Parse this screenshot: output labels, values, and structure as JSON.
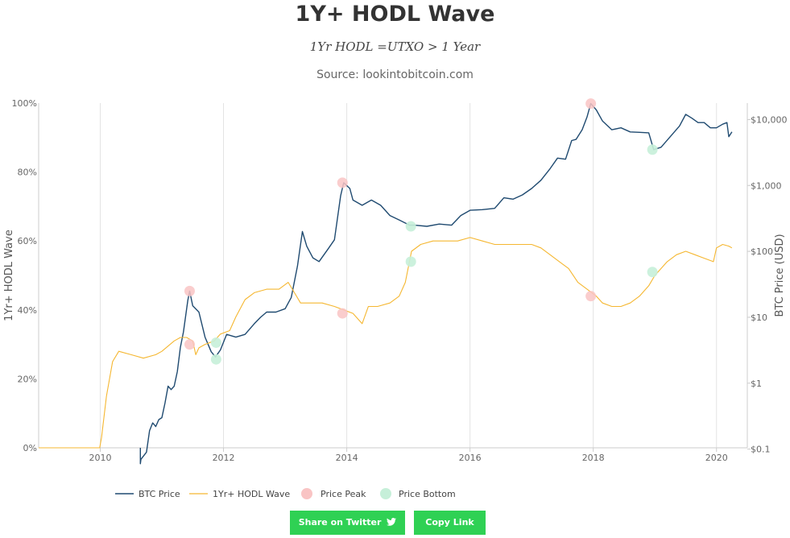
{
  "title": "1Y+ HODL Wave",
  "subtitle": "1Yr HODL =UTXO > 1 Year",
  "source": "Source: lookintobitcoin.com",
  "buttons": {
    "twitter_label": "Share on Twitter",
    "copy_label": "Copy Link"
  },
  "colors": {
    "btc_price": "#1f4a70",
    "hodl_wave": "#f5b731",
    "price_peak": "#f9c4c4",
    "price_bottom": "#c6efd9",
    "button": "#2fd154"
  },
  "chart_data": {
    "type": "line",
    "title": "1Y+ HODL Wave",
    "y_left_label": "1Yr+ HODL Wave",
    "y_right_label": "BTC Price (USD)",
    "y_left_ticks": [
      "0%",
      "20%",
      "40%",
      "60%",
      "80%",
      "100%"
    ],
    "y_right_ticks": [
      "$0.1",
      "$1",
      "$10",
      "$100",
      "$1,000",
      "$10,000"
    ],
    "x_ticks": [
      "2010",
      "2012",
      "2014",
      "2016",
      "2018",
      "2020"
    ],
    "x_range": [
      2009.0,
      2020.5
    ],
    "y_left_range": [
      0,
      100
    ],
    "y_right_range_log": [
      -0.98,
      4.25
    ],
    "right_axis_scale": "log",
    "grid": "vertical lines at x ticks",
    "legend_position": "bottom-center",
    "legend": [
      "BTC Price",
      "1Yr+ HODL Wave",
      "Price Peak",
      "Price Bottom"
    ],
    "series": [
      {
        "name": "BTC Price",
        "axis": "right",
        "x": [
          2010.65,
          2010.66,
          2010.75,
          2010.8,
          2010.85,
          2010.9,
          2010.95,
          2011.0,
          2011.05,
          2011.1,
          2011.15,
          2011.2,
          2011.25,
          2011.3,
          2011.35,
          2011.42,
          2011.45,
          2011.5,
          2011.6,
          2011.7,
          2011.8,
          2011.87,
          2011.95,
          2012.05,
          2012.2,
          2012.35,
          2012.5,
          2012.6,
          2012.7,
          2012.85,
          2013.0,
          2013.1,
          2013.2,
          2013.28,
          2013.35,
          2013.45,
          2013.55,
          2013.7,
          2013.8,
          2013.9,
          2013.95,
          2014.05,
          2014.1,
          2014.25,
          2014.4,
          2014.55,
          2014.7,
          2014.85,
          2015.02,
          2015.1,
          2015.3,
          2015.5,
          2015.7,
          2015.85,
          2016.0,
          2016.2,
          2016.4,
          2016.55,
          2016.7,
          2016.85,
          2017.0,
          2017.15,
          2017.3,
          2017.42,
          2017.55,
          2017.65,
          2017.72,
          2017.82,
          2017.9,
          2017.96,
          2018.05,
          2018.15,
          2018.3,
          2018.45,
          2018.6,
          2018.75,
          2018.9,
          2018.98,
          2019.1,
          2019.25,
          2019.4,
          2019.5,
          2019.6,
          2019.7,
          2019.8,
          2019.9,
          2020.0,
          2020.1,
          2020.17,
          2020.2,
          2020.25
        ],
        "values": [
          0.06,
          0.07,
          0.09,
          0.19,
          0.25,
          0.22,
          0.28,
          0.3,
          0.5,
          0.9,
          0.8,
          0.9,
          1.5,
          3.5,
          6,
          18,
          25,
          15,
          12,
          5,
          3,
          2.5,
          3.2,
          5.5,
          5,
          5.5,
          8,
          10,
          12,
          12,
          13.5,
          20,
          60,
          200,
          120,
          80,
          70,
          110,
          150,
          700,
          1100,
          900,
          600,
          500,
          600,
          500,
          350,
          300,
          250,
          250,
          240,
          260,
          250,
          350,
          420,
          430,
          450,
          650,
          620,
          720,
          900,
          1200,
          1800,
          2600,
          2500,
          4800,
          5000,
          7000,
          11000,
          17500,
          14000,
          9500,
          7000,
          7500,
          6500,
          6400,
          6300,
          3500,
          3800,
          5500,
          8000,
          12000,
          10500,
          9000,
          9000,
          7500,
          7500,
          8500,
          9000,
          5500,
          6500
        ]
      },
      {
        "name": "1Yr+ HODL Wave",
        "axis": "left",
        "x": [
          2009.0,
          2009.99,
          2010.02,
          2010.1,
          2010.2,
          2010.3,
          2010.5,
          2010.7,
          2010.9,
          2011.0,
          2011.2,
          2011.3,
          2011.4,
          2011.5,
          2011.55,
          2011.6,
          2011.7,
          2011.85,
          2011.95,
          2012.1,
          2012.2,
          2012.35,
          2012.5,
          2012.7,
          2012.9,
          2013.05,
          2013.15,
          2013.25,
          2013.4,
          2013.6,
          2013.8,
          2013.95,
          2014.1,
          2014.2,
          2014.25,
          2014.35,
          2014.5,
          2014.7,
          2014.85,
          2014.95,
          2015.05,
          2015.2,
          2015.4,
          2015.6,
          2015.8,
          2016.0,
          2016.2,
          2016.4,
          2016.6,
          2016.8,
          2017.0,
          2017.15,
          2017.3,
          2017.45,
          2017.6,
          2017.75,
          2017.9,
          2018.05,
          2018.15,
          2018.3,
          2018.45,
          2018.6,
          2018.75,
          2018.9,
          2019.0,
          2019.1,
          2019.2,
          2019.35,
          2019.5,
          2019.65,
          2019.8,
          2019.95,
          2020.0,
          2020.1,
          2020.2,
          2020.25
        ],
        "values": [
          0,
          0,
          3,
          15,
          25,
          28,
          27,
          26,
          27,
          28,
          31,
          32,
          32,
          31,
          27,
          29,
          30,
          31,
          33,
          34,
          38,
          43,
          45,
          46,
          46,
          48,
          45,
          42,
          42,
          42,
          41,
          40,
          39,
          37,
          36,
          41,
          41,
          42,
          44,
          48,
          57,
          59,
          60,
          60,
          60,
          61,
          60,
          59,
          59,
          59,
          59,
          58,
          56,
          54,
          52,
          48,
          46,
          44,
          42,
          41,
          41,
          42,
          44,
          47,
          50,
          52,
          54,
          56,
          57,
          56,
          55,
          54,
          58,
          59,
          58.5,
          58
        ]
      }
    ],
    "price_peaks": [
      {
        "x": 2011.45,
        "price": 25,
        "hodl": 30
      },
      {
        "x": 2013.93,
        "price": 1100,
        "hodl": 39
      },
      {
        "x": 2017.96,
        "price": 17500,
        "hodl": 44
      }
    ],
    "price_bottoms": [
      {
        "x": 2011.88,
        "price": 2.3,
        "hodl": 30.5
      },
      {
        "x": 2015.04,
        "price": 240,
        "hodl": 54
      },
      {
        "x": 2018.96,
        "price": 3500,
        "hodl": 51
      }
    ]
  }
}
